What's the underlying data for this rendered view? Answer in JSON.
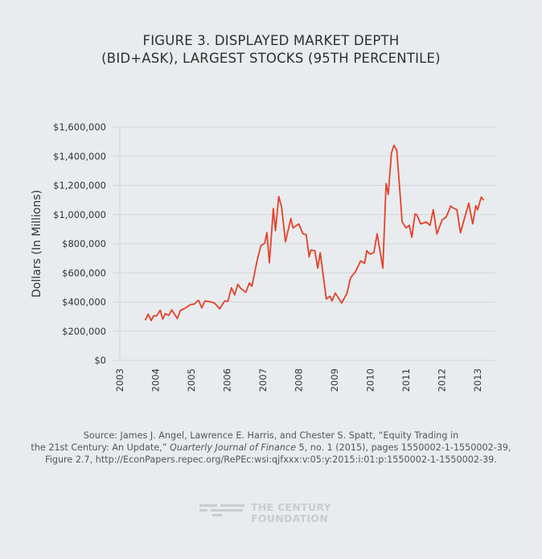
{
  "chart_data": {
    "type": "line",
    "title_line1": "FIGURE 3. DISPLAYED MARKET DEPTH",
    "title_line2": "(BID+ASK), LARGEST STOCKS (95TH PERCENTILE)",
    "xlabel": "",
    "ylabel": "Dollars (In Millions)",
    "xlim": [
      2003,
      2013.5
    ],
    "ylim": [
      0,
      1600000
    ],
    "y_ticks": [
      0,
      200000,
      400000,
      600000,
      800000,
      1000000,
      1200000,
      1400000,
      1600000
    ],
    "y_tick_labels": [
      "$0",
      "$200,000",
      "$400,000",
      "$600,000",
      "$800,000",
      "$1,000,000",
      "$1,200,000",
      "$1,400,000",
      "$1,600,000"
    ],
    "x_ticks": [
      2003,
      2004,
      2005,
      2006,
      2007,
      2008,
      2009,
      2010,
      2011,
      2012,
      2013
    ],
    "x_tick_labels": [
      "2003",
      "2004",
      "2005",
      "2006",
      "2007",
      "2008",
      "2009",
      "2010",
      "2011",
      "2012",
      "2013"
    ],
    "grid": "horizontal",
    "line_color": "#e8402a",
    "series": [
      {
        "name": "Displayed market depth",
        "x": [
          2003.71,
          2003.79,
          2003.88,
          2003.94,
          2004.03,
          2004.13,
          2004.2,
          2004.27,
          2004.37,
          2004.45,
          2004.61,
          2004.69,
          2004.82,
          2004.97,
          2005.08,
          2005.2,
          2005.29,
          2005.38,
          2005.61,
          2005.68,
          2005.79,
          2005.93,
          2006.02,
          2006.12,
          2006.21,
          2006.3,
          2006.38,
          2006.52,
          2006.62,
          2006.69,
          2006.84,
          2006.94,
          2007.05,
          2007.11,
          2007.18,
          2007.29,
          2007.35,
          2007.44,
          2007.52,
          2007.63,
          2007.78,
          2007.84,
          2008.0,
          2008.12,
          2008.21,
          2008.29,
          2008.34,
          2008.45,
          2008.53,
          2008.6,
          2008.77,
          2008.87,
          2008.93,
          2009.02,
          2009.2,
          2009.35,
          2009.45,
          2009.58,
          2009.73,
          2009.84,
          2009.9,
          2009.99,
          2010.1,
          2010.19,
          2010.35,
          2010.44,
          2010.5,
          2010.59,
          2010.66,
          2010.74,
          2010.89,
          2011.0,
          2011.09,
          2011.16,
          2011.25,
          2011.3,
          2011.41,
          2011.56,
          2011.67,
          2011.76,
          2011.86,
          2011.95,
          2012.01,
          2012.12,
          2012.25,
          2012.31,
          2012.42,
          2012.52,
          2012.75,
          2012.86,
          2012.95,
          2013.0,
          2013.1,
          2013.17
        ],
        "values": [
          274000,
          316000,
          272000,
          305000,
          305000,
          344000,
          283000,
          320000,
          309000,
          346000,
          287000,
          342000,
          357000,
          382000,
          386000,
          412000,
          360000,
          408000,
          397000,
          384000,
          353000,
          408000,
          405000,
          498000,
          449000,
          522000,
          493000,
          467000,
          530000,
          508000,
          688000,
          785000,
          804000,
          877000,
          669000,
          1041000,
          890000,
          1124000,
          1055000,
          813000,
          973000,
          908000,
          936000,
          868000,
          862000,
          710000,
          756000,
          752000,
          633000,
          739000,
          421000,
          440000,
          408000,
          462000,
          393000,
          462000,
          568000,
          605000,
          682000,
          666000,
          752000,
          728000,
          739000,
          868000,
          633000,
          1212000,
          1138000,
          1423000,
          1475000,
          1442000,
          949000,
          908000,
          927000,
          844000,
          1004000,
          1000000,
          936000,
          949000,
          927000,
          1033000,
          866000,
          927000,
          964000,
          982000,
          1059000,
          1046000,
          1033000,
          875000,
          1078000,
          936000,
          1061000,
          1033000,
          1120000,
          1098000
        ]
      }
    ]
  },
  "source": {
    "line1": "Source: James J. Angel, Lawrence E. Harris, and Chester S. Spatt, “Equity Trading in",
    "line2_pre": "the 21st Century: An Update,” ",
    "line2_journal": "Quarterly Journal of Finance",
    "line2_post": " 5, no. 1 (2015), pages 1550002-1-1550002-39,",
    "line3": "Figure 2.7, http://EconPapers.repec.org/RePEc:wsi:qjfxxx:v:05:y:2015:i:01:p:1550002-1-1550002-39."
  },
  "logo": {
    "line1": "THE CENTURY",
    "line2": "FOUNDATION"
  }
}
